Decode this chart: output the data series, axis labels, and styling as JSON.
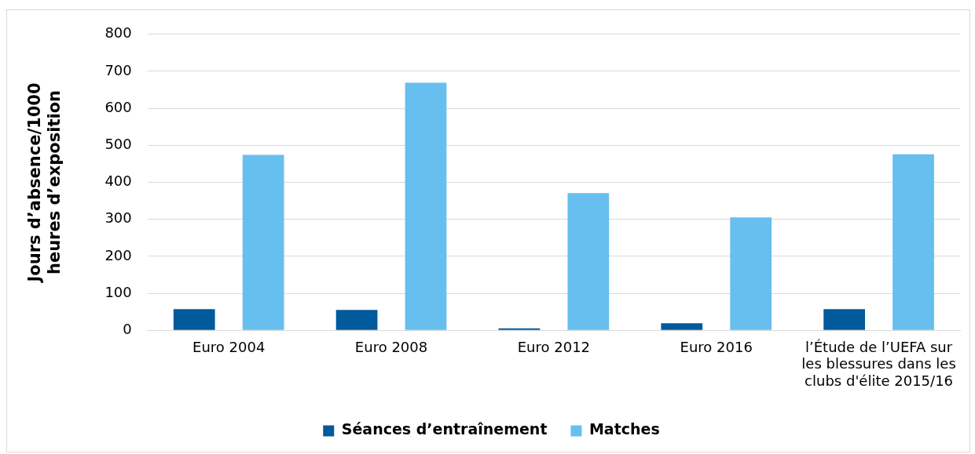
{
  "chart_data": {
    "type": "bar",
    "ylabel": "Jours d’absence/1000 heures d’exposition",
    "categories": [
      "Euro 2004",
      "Euro 2008",
      "Euro 2012",
      "Euro 2016",
      "l’Étude de l’UEFA sur les blessures dans les clubs d'élite 2015/16"
    ],
    "series": [
      {
        "name": "Séances d’entraînement",
        "color": "#005a9c",
        "values": [
          57,
          55,
          5,
          19,
          57
        ]
      },
      {
        "name": "Matches",
        "color": "#66bfee",
        "values": [
          474,
          669,
          371,
          305,
          476
        ]
      }
    ],
    "ylim": [
      0,
      800
    ],
    "yticks": [
      0,
      100,
      200,
      300,
      400,
      500,
      600,
      700,
      800
    ],
    "grid": "y",
    "legend": "bottom"
  }
}
